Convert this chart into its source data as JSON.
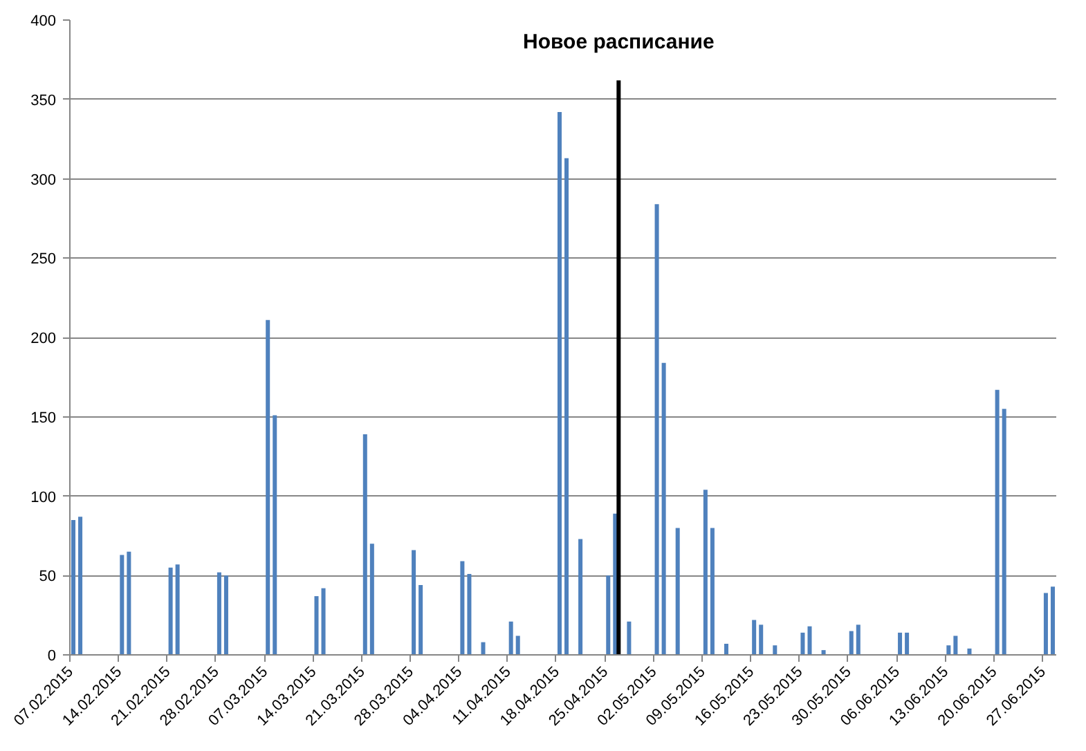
{
  "chart_data": {
    "type": "bar",
    "color": "#4f81bd",
    "x": [
      "2015-02-07",
      "2015-02-08",
      "2015-02-14",
      "2015-02-15",
      "2015-02-21",
      "2015-02-22",
      "2015-02-28",
      "2015-03-01",
      "2015-03-07",
      "2015-03-08",
      "2015-03-14",
      "2015-03-15",
      "2015-03-21",
      "2015-03-22",
      "2015-03-28",
      "2015-03-29",
      "2015-04-04",
      "2015-04-05",
      "2015-04-07",
      "2015-04-11",
      "2015-04-12",
      "2015-04-18",
      "2015-04-19",
      "2015-04-21",
      "2015-04-25",
      "2015-04-26",
      "2015-04-28",
      "2015-05-02",
      "2015-05-03",
      "2015-05-05",
      "2015-05-09",
      "2015-05-10",
      "2015-05-12",
      "2015-05-16",
      "2015-05-17",
      "2015-05-19",
      "2015-05-23",
      "2015-05-24",
      "2015-05-26",
      "2015-05-30",
      "2015-05-31",
      "2015-06-06",
      "2015-06-07",
      "2015-06-13",
      "2015-06-14",
      "2015-06-16",
      "2015-06-20",
      "2015-06-21",
      "2015-06-27",
      "2015-06-28"
    ],
    "values": [
      85,
      87,
      63,
      65,
      55,
      57,
      52,
      50,
      211,
      151,
      37,
      42,
      139,
      70,
      66,
      44,
      59,
      51,
      8,
      21,
      12,
      342,
      313,
      73,
      50,
      89,
      21,
      284,
      184,
      80,
      104,
      80,
      7,
      22,
      19,
      6,
      14,
      18,
      3,
      15,
      19,
      14,
      14,
      6,
      12,
      4,
      167,
      155,
      39,
      43
    ],
    "xlim": [
      "2015-02-07",
      "2015-06-29"
    ],
    "xticks": [
      {
        "value": "2015-02-07",
        "label": "07.02.2015"
      },
      {
        "value": "2015-02-14",
        "label": "14.02.2015"
      },
      {
        "value": "2015-02-21",
        "label": "21.02.2015"
      },
      {
        "value": "2015-02-28",
        "label": "28.02.2015"
      },
      {
        "value": "2015-03-07",
        "label": "07.03.2015"
      },
      {
        "value": "2015-03-14",
        "label": "14.03.2015"
      },
      {
        "value": "2015-03-21",
        "label": "21.03.2015"
      },
      {
        "value": "2015-03-28",
        "label": "28.03.2015"
      },
      {
        "value": "2015-04-04",
        "label": "04.04.2015"
      },
      {
        "value": "2015-04-11",
        "label": "11.04.2015"
      },
      {
        "value": "2015-04-18",
        "label": "18.04.2015"
      },
      {
        "value": "2015-04-25",
        "label": "25.04.2015"
      },
      {
        "value": "2015-05-02",
        "label": "02.05.2015"
      },
      {
        "value": "2015-05-09",
        "label": "09.05.2015"
      },
      {
        "value": "2015-05-16",
        "label": "16.05.2015"
      },
      {
        "value": "2015-05-23",
        "label": "23.05.2015"
      },
      {
        "value": "2015-05-30",
        "label": "30.05.2015"
      },
      {
        "value": "2015-06-06",
        "label": "06.06.2015"
      },
      {
        "value": "2015-06-13",
        "label": "13.06.2015"
      },
      {
        "value": "2015-06-20",
        "label": "20.06.2015"
      },
      {
        "value": "2015-06-27",
        "label": "27.06.2015"
      }
    ],
    "ylim": [
      0,
      400
    ],
    "yticks": [
      0,
      50,
      100,
      150,
      200,
      250,
      300,
      350,
      400
    ],
    "grid": "y",
    "ref_lines": [
      {
        "axis": "x",
        "value": "2015-04-27",
        "label": "Новое расписание",
        "color": "#000000"
      }
    ]
  }
}
